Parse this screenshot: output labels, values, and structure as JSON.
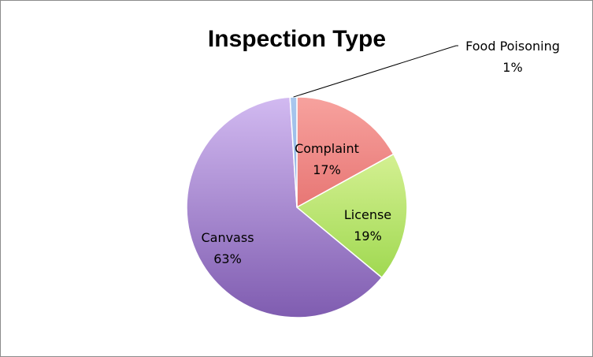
{
  "chart_data": {
    "type": "pie",
    "title": "Inspection Type",
    "start_angle_deg": 0,
    "direction": "clockwise",
    "slices": [
      {
        "label": "Complaint",
        "value": 17,
        "value_label": "17%",
        "color_light": "#f7a29e",
        "color_dark": "#d84a4a"
      },
      {
        "label": "License",
        "value": 19,
        "value_label": "19%",
        "color_light": "#ecfbb0",
        "color_dark": "#8fd13c"
      },
      {
        "label": "Canvass",
        "value": 63,
        "value_label": "63%",
        "color_light": "#d2baf1",
        "color_dark": "#7f5cb0"
      },
      {
        "label": "Food Poisoning",
        "value": 1,
        "value_label": "1%",
        "color_light": "#a9c8ee",
        "color_dark": "#6d96d4"
      }
    ],
    "legend": "none"
  }
}
